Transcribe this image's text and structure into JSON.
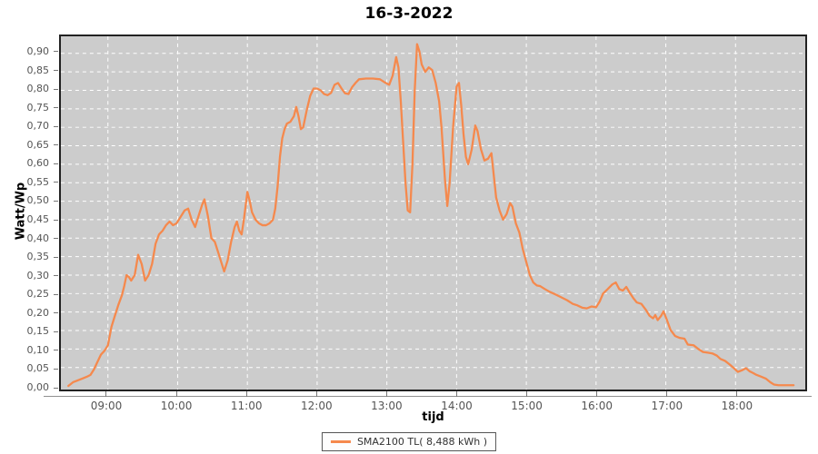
{
  "title": "16-3-2022",
  "axes": {
    "x_label": "tijd",
    "y_label": "Watt/Wp"
  },
  "legend": {
    "label": "SMA2100 TL( 8,488 kWh )"
  },
  "colors": {
    "series": "#f5894d",
    "plot_background": "#cccccc",
    "gridline": "#ffffff",
    "tick_text": "#555555",
    "frame": "#222222"
  },
  "chart_data": {
    "type": "line",
    "title": "16-3-2022",
    "xlabel": "tijd",
    "ylabel": "Watt/Wp",
    "grid": "white dashed, on",
    "legend_position": "bottom center",
    "xlim_hours": [
      8.3256,
      19.0
    ],
    "ylim": [
      -0.0097,
      0.9462
    ],
    "yticks": [
      {
        "v": 0.0,
        "label": "0,00"
      },
      {
        "v": 0.05,
        "label": "0,05"
      },
      {
        "v": 0.1,
        "label": "0,10"
      },
      {
        "v": 0.15,
        "label": "0,15"
      },
      {
        "v": 0.2,
        "label": "0,20"
      },
      {
        "v": 0.25,
        "label": "0,25"
      },
      {
        "v": 0.3,
        "label": "0,30"
      },
      {
        "v": 0.35,
        "label": "0,35"
      },
      {
        "v": 0.4,
        "label": "0,40"
      },
      {
        "v": 0.45,
        "label": "0,45"
      },
      {
        "v": 0.5,
        "label": "0,50"
      },
      {
        "v": 0.55,
        "label": "0,55"
      },
      {
        "v": 0.6,
        "label": "0,60"
      },
      {
        "v": 0.65,
        "label": "0,65"
      },
      {
        "v": 0.7,
        "label": "0,70"
      },
      {
        "v": 0.75,
        "label": "0,75"
      },
      {
        "v": 0.8,
        "label": "0,80"
      },
      {
        "v": 0.85,
        "label": "0,85"
      },
      {
        "v": 0.9,
        "label": "0,90"
      }
    ],
    "xticks": [
      {
        "h": 9,
        "label": "09:00"
      },
      {
        "h": 10,
        "label": "10:00"
      },
      {
        "h": 11,
        "label": "11:00"
      },
      {
        "h": 12,
        "label": "12:00"
      },
      {
        "h": 13,
        "label": "13:00"
      },
      {
        "h": 14,
        "label": "14:00"
      },
      {
        "h": 15,
        "label": "15:00"
      },
      {
        "h": 16,
        "label": "16:00"
      },
      {
        "h": 17,
        "label": "17:00"
      },
      {
        "h": 18,
        "label": "18:00"
      }
    ],
    "series": [
      {
        "name": "SMA2100 TL( 8,488 kWh )",
        "color": "#f5894d",
        "points": [
          [
            "08:26",
            0.0
          ],
          [
            "08:30",
            0.01
          ],
          [
            "08:34",
            0.015
          ],
          [
            "08:38",
            0.02
          ],
          [
            "08:42",
            0.025
          ],
          [
            "08:45",
            0.03
          ],
          [
            "08:48",
            0.045
          ],
          [
            "08:51",
            0.065
          ],
          [
            "08:54",
            0.085
          ],
          [
            "08:57",
            0.095
          ],
          [
            "09:00",
            0.11
          ],
          [
            "09:03",
            0.16
          ],
          [
            "09:06",
            0.19
          ],
          [
            "09:09",
            0.22
          ],
          [
            "09:12",
            0.245
          ],
          [
            "09:14",
            0.27
          ],
          [
            "09:16",
            0.3
          ],
          [
            "09:18",
            0.295
          ],
          [
            "09:20",
            0.285
          ],
          [
            "09:23",
            0.3
          ],
          [
            "09:26",
            0.355
          ],
          [
            "09:29",
            0.33
          ],
          [
            "09:32",
            0.285
          ],
          [
            "09:35",
            0.3
          ],
          [
            "09:38",
            0.33
          ],
          [
            "09:41",
            0.385
          ],
          [
            "09:44",
            0.41
          ],
          [
            "09:47",
            0.42
          ],
          [
            "09:50",
            0.435
          ],
          [
            "09:53",
            0.445
          ],
          [
            "09:56",
            0.435
          ],
          [
            "09:59",
            0.44
          ],
          [
            "10:02",
            0.455
          ],
          [
            "10:06",
            0.475
          ],
          [
            "10:09",
            0.48
          ],
          [
            "10:12",
            0.45
          ],
          [
            "10:15",
            0.43
          ],
          [
            "10:18",
            0.46
          ],
          [
            "10:21",
            0.49
          ],
          [
            "10:23",
            0.505
          ],
          [
            "10:26",
            0.46
          ],
          [
            "10:29",
            0.4
          ],
          [
            "10:32",
            0.39
          ],
          [
            "10:35",
            0.36
          ],
          [
            "10:38",
            0.33
          ],
          [
            "10:40",
            0.31
          ],
          [
            "10:43",
            0.34
          ],
          [
            "10:46",
            0.39
          ],
          [
            "10:49",
            0.43
          ],
          [
            "10:51",
            0.445
          ],
          [
            "10:53",
            0.42
          ],
          [
            "10:55",
            0.41
          ],
          [
            "10:57",
            0.45
          ],
          [
            "11:00",
            0.525
          ],
          [
            "11:02",
            0.5
          ],
          [
            "11:04",
            0.47
          ],
          [
            "11:07",
            0.45
          ],
          [
            "11:10",
            0.44
          ],
          [
            "11:13",
            0.435
          ],
          [
            "11:16",
            0.435
          ],
          [
            "11:19",
            0.44
          ],
          [
            "11:22",
            0.45
          ],
          [
            "11:24",
            0.48
          ],
          [
            "11:26",
            0.54
          ],
          [
            "11:28",
            0.62
          ],
          [
            "11:30",
            0.67
          ],
          [
            "11:32",
            0.695
          ],
          [
            "11:34",
            0.71
          ],
          [
            "11:37",
            0.715
          ],
          [
            "11:40",
            0.73
          ],
          [
            "11:42",
            0.755
          ],
          [
            "11:44",
            0.73
          ],
          [
            "11:46",
            0.695
          ],
          [
            "11:48",
            0.7
          ],
          [
            "11:51",
            0.745
          ],
          [
            "11:54",
            0.785
          ],
          [
            "11:57",
            0.805
          ],
          [
            "12:00",
            0.805
          ],
          [
            "12:03",
            0.8
          ],
          [
            "12:06",
            0.79
          ],
          [
            "12:09",
            0.787
          ],
          [
            "12:12",
            0.793
          ],
          [
            "12:15",
            0.815
          ],
          [
            "12:18",
            0.82
          ],
          [
            "12:21",
            0.805
          ],
          [
            "12:24",
            0.792
          ],
          [
            "12:27",
            0.79
          ],
          [
            "12:30",
            0.808
          ],
          [
            "12:33",
            0.82
          ],
          [
            "12:36",
            0.83
          ],
          [
            "12:42",
            0.832
          ],
          [
            "12:48",
            0.832
          ],
          [
            "12:54",
            0.83
          ],
          [
            "12:58",
            0.822
          ],
          [
            "13:02",
            0.815
          ],
          [
            "13:05",
            0.84
          ],
          [
            "13:08",
            0.89
          ],
          [
            "13:10",
            0.862
          ],
          [
            "13:12",
            0.77
          ],
          [
            "13:14",
            0.66
          ],
          [
            "13:16",
            0.55
          ],
          [
            "13:18",
            0.475
          ],
          [
            "13:20",
            0.47
          ],
          [
            "13:22",
            0.6
          ],
          [
            "13:24",
            0.8
          ],
          [
            "13:26",
            0.925
          ],
          [
            "13:28",
            0.905
          ],
          [
            "13:30",
            0.87
          ],
          [
            "13:33",
            0.85
          ],
          [
            "13:36",
            0.862
          ],
          [
            "13:39",
            0.855
          ],
          [
            "13:42",
            0.82
          ],
          [
            "13:45",
            0.77
          ],
          [
            "13:47",
            0.7
          ],
          [
            "13:50",
            0.56
          ],
          [
            "13:52",
            0.487
          ],
          [
            "13:54",
            0.55
          ],
          [
            "13:57",
            0.7
          ],
          [
            "14:00",
            0.81
          ],
          [
            "14:02",
            0.82
          ],
          [
            "14:04",
            0.76
          ],
          [
            "14:06",
            0.68
          ],
          [
            "14:08",
            0.62
          ],
          [
            "14:10",
            0.6
          ],
          [
            "14:13",
            0.64
          ],
          [
            "14:16",
            0.705
          ],
          [
            "14:18",
            0.69
          ],
          [
            "14:21",
            0.64
          ],
          [
            "14:24",
            0.61
          ],
          [
            "14:27",
            0.615
          ],
          [
            "14:30",
            0.63
          ],
          [
            "14:32",
            0.57
          ],
          [
            "14:34",
            0.51
          ],
          [
            "14:37",
            0.475
          ],
          [
            "14:40",
            0.45
          ],
          [
            "14:43",
            0.465
          ],
          [
            "14:46",
            0.495
          ],
          [
            "14:48",
            0.485
          ],
          [
            "14:51",
            0.44
          ],
          [
            "14:54",
            0.415
          ],
          [
            "14:57",
            0.37
          ],
          [
            "15:00",
            0.335
          ],
          [
            "15:03",
            0.3
          ],
          [
            "15:06",
            0.28
          ],
          [
            "15:09",
            0.272
          ],
          [
            "15:12",
            0.27
          ],
          [
            "15:16",
            0.262
          ],
          [
            "15:20",
            0.255
          ],
          [
            "15:25",
            0.248
          ],
          [
            "15:30",
            0.24
          ],
          [
            "15:35",
            0.232
          ],
          [
            "15:40",
            0.222
          ],
          [
            "15:44",
            0.218
          ],
          [
            "15:48",
            0.212
          ],
          [
            "15:52",
            0.21
          ],
          [
            "15:56",
            0.215
          ],
          [
            "16:00",
            0.213
          ],
          [
            "16:03",
            0.228
          ],
          [
            "16:06",
            0.25
          ],
          [
            "16:10",
            0.262
          ],
          [
            "16:14",
            0.275
          ],
          [
            "16:17",
            0.28
          ],
          [
            "16:20",
            0.262
          ],
          [
            "16:23",
            0.258
          ],
          [
            "16:26",
            0.268
          ],
          [
            "16:29",
            0.252
          ],
          [
            "16:32",
            0.238
          ],
          [
            "16:35",
            0.226
          ],
          [
            "16:39",
            0.222
          ],
          [
            "16:43",
            0.205
          ],
          [
            "16:46",
            0.19
          ],
          [
            "16:49",
            0.183
          ],
          [
            "16:51",
            0.192
          ],
          [
            "16:53",
            0.178
          ],
          [
            "16:56",
            0.19
          ],
          [
            "16:58",
            0.202
          ],
          [
            "17:01",
            0.178
          ],
          [
            "17:04",
            0.152
          ],
          [
            "17:08",
            0.135
          ],
          [
            "17:12",
            0.13
          ],
          [
            "17:16",
            0.128
          ],
          [
            "17:19",
            0.112
          ],
          [
            "17:24",
            0.11
          ],
          [
            "17:28",
            0.1
          ],
          [
            "17:32",
            0.092
          ],
          [
            "17:36",
            0.09
          ],
          [
            "17:40",
            0.088
          ],
          [
            "17:44",
            0.082
          ],
          [
            "17:47",
            0.073
          ],
          [
            "17:51",
            0.068
          ],
          [
            "17:55",
            0.058
          ],
          [
            "17:58",
            0.05
          ],
          [
            "18:02",
            0.038
          ],
          [
            "18:06",
            0.043
          ],
          [
            "18:09",
            0.048
          ],
          [
            "18:12",
            0.04
          ],
          [
            "18:15",
            0.035
          ],
          [
            "18:18",
            0.03
          ],
          [
            "18:22",
            0.025
          ],
          [
            "18:26",
            0.02
          ],
          [
            "18:30",
            0.01
          ],
          [
            "18:33",
            0.004
          ],
          [
            "18:37",
            0.002
          ],
          [
            "18:44",
            0.002
          ],
          [
            "18:50",
            0.002
          ]
        ]
      }
    ]
  }
}
